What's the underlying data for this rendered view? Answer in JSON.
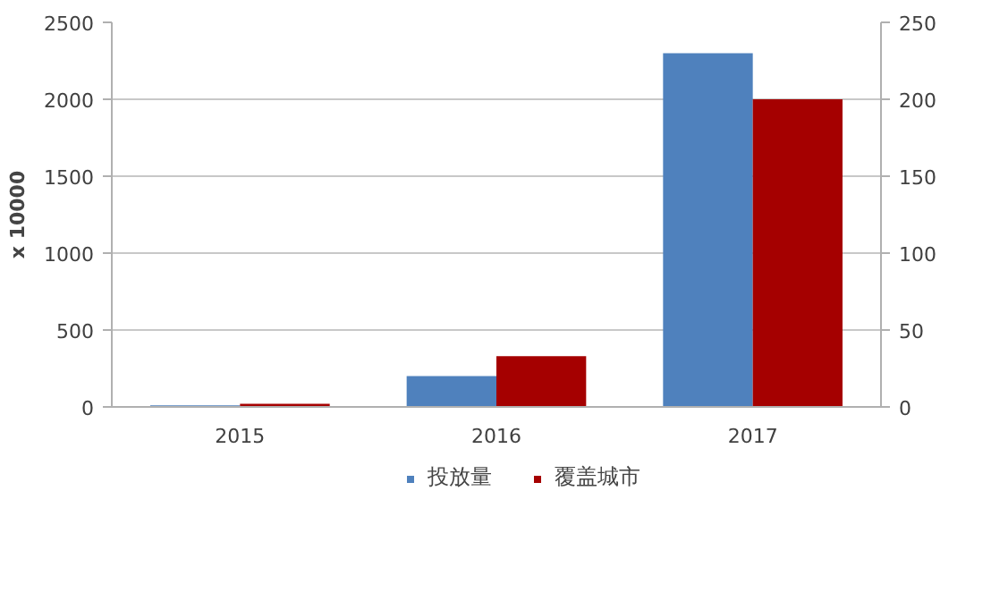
{
  "chart_data": {
    "type": "bar",
    "ylabel": "x 10000",
    "categories": [
      "2015",
      "2016",
      "2017"
    ],
    "series": [
      {
        "name": "投放量",
        "color": "#4f81bd",
        "values": [
          10,
          200,
          2300
        ]
      },
      {
        "name": "覆盖城市",
        "color": "#a50000",
        "values": [
          2,
          33,
          200
        ],
        "axis": "y2"
      }
    ],
    "ylim": [
      0,
      2500
    ],
    "yticks": [
      0,
      500,
      1000,
      1500,
      2000,
      2500
    ],
    "y2lim": [
      0,
      250
    ],
    "y2ticks": [
      0,
      50,
      100,
      150,
      200,
      250
    ],
    "grid": "y",
    "legend": "bottom"
  }
}
